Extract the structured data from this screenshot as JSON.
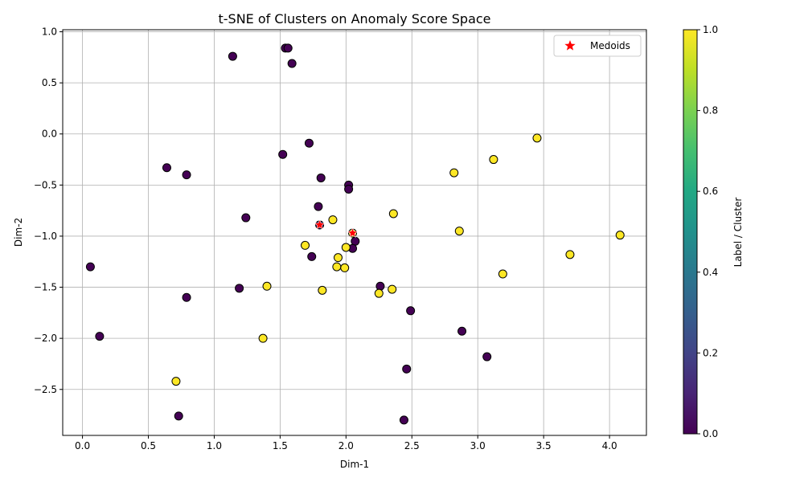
{
  "chart_data": {
    "type": "scatter",
    "title": "t-SNE of Clusters on Anomaly Score Space",
    "xlabel": "Dim-1",
    "ylabel": "Dim-2",
    "xlim": [
      -0.15,
      4.28
    ],
    "ylim": [
      -2.95,
      1.02
    ],
    "xticks": [
      0.0,
      0.5,
      1.0,
      1.5,
      2.0,
      2.5,
      3.0,
      3.5,
      4.0
    ],
    "xtick_labels": [
      "0.0",
      "0.5",
      "1.0",
      "1.5",
      "2.0",
      "2.5",
      "3.0",
      "3.5",
      "4.0"
    ],
    "yticks": [
      1.0,
      0.5,
      0.0,
      -0.5,
      -1.0,
      -1.5,
      -2.0,
      -2.5
    ],
    "ytick_labels": [
      "1.0",
      "0.5",
      "0.0",
      "−0.5",
      "−1.0",
      "−1.5",
      "−2.0",
      "−2.5"
    ],
    "grid": true,
    "legend_placement": "top-right",
    "legend": [
      {
        "label": "Medoids",
        "marker": "star",
        "color": "#ff0000"
      }
    ],
    "colorbar": {
      "label": "Label / Cluster",
      "range": [
        0.0,
        1.0
      ],
      "ticks": [
        0.0,
        0.2,
        0.4,
        0.6,
        0.8,
        1.0
      ],
      "tick_labels": [
        "0.0",
        "0.2",
        "0.4",
        "0.6",
        "0.8",
        "1.0"
      ],
      "colormap": "viridis"
    },
    "series": [
      {
        "cluster": 0,
        "color": "#440154",
        "points": [
          [
            1.14,
            0.76
          ],
          [
            1.54,
            0.84
          ],
          [
            1.56,
            0.84
          ],
          [
            1.59,
            0.69
          ],
          [
            1.52,
            -0.2
          ],
          [
            1.72,
            -0.09
          ],
          [
            1.81,
            -0.43
          ],
          [
            2.02,
            -0.5
          ],
          [
            2.02,
            -0.54
          ],
          [
            1.79,
            -0.71
          ],
          [
            1.24,
            -0.82
          ],
          [
            0.64,
            -0.33
          ],
          [
            0.79,
            -0.4
          ],
          [
            2.07,
            -1.05
          ],
          [
            2.05,
            -1.12
          ],
          [
            1.74,
            -1.2
          ],
          [
            0.06,
            -1.3
          ],
          [
            1.19,
            -1.51
          ],
          [
            0.79,
            -1.6
          ],
          [
            2.26,
            -1.49
          ],
          [
            2.49,
            -1.73
          ],
          [
            0.13,
            -1.98
          ],
          [
            2.88,
            -1.93
          ],
          [
            3.07,
            -2.18
          ],
          [
            2.46,
            -2.3
          ],
          [
            0.73,
            -2.76
          ],
          [
            2.44,
            -2.8
          ],
          [
            1.8,
            -0.89
          ]
        ]
      },
      {
        "cluster": 1,
        "color": "#fde725",
        "points": [
          [
            3.45,
            -0.04
          ],
          [
            3.12,
            -0.25
          ],
          [
            2.82,
            -0.38
          ],
          [
            2.36,
            -0.78
          ],
          [
            1.9,
            -0.84
          ],
          [
            2.86,
            -0.95
          ],
          [
            4.08,
            -0.99
          ],
          [
            1.69,
            -1.09
          ],
          [
            2.0,
            -1.11
          ],
          [
            1.94,
            -1.21
          ],
          [
            3.7,
            -1.18
          ],
          [
            1.93,
            -1.3
          ],
          [
            1.99,
            -1.31
          ],
          [
            3.19,
            -1.37
          ],
          [
            1.4,
            -1.49
          ],
          [
            1.82,
            -1.53
          ],
          [
            2.35,
            -1.52
          ],
          [
            2.25,
            -1.56
          ],
          [
            1.37,
            -2.0
          ],
          [
            0.71,
            -2.42
          ],
          [
            2.05,
            -0.97
          ]
        ]
      }
    ],
    "medoids": [
      [
        1.8,
        -0.89
      ],
      [
        2.05,
        -0.97
      ]
    ]
  }
}
